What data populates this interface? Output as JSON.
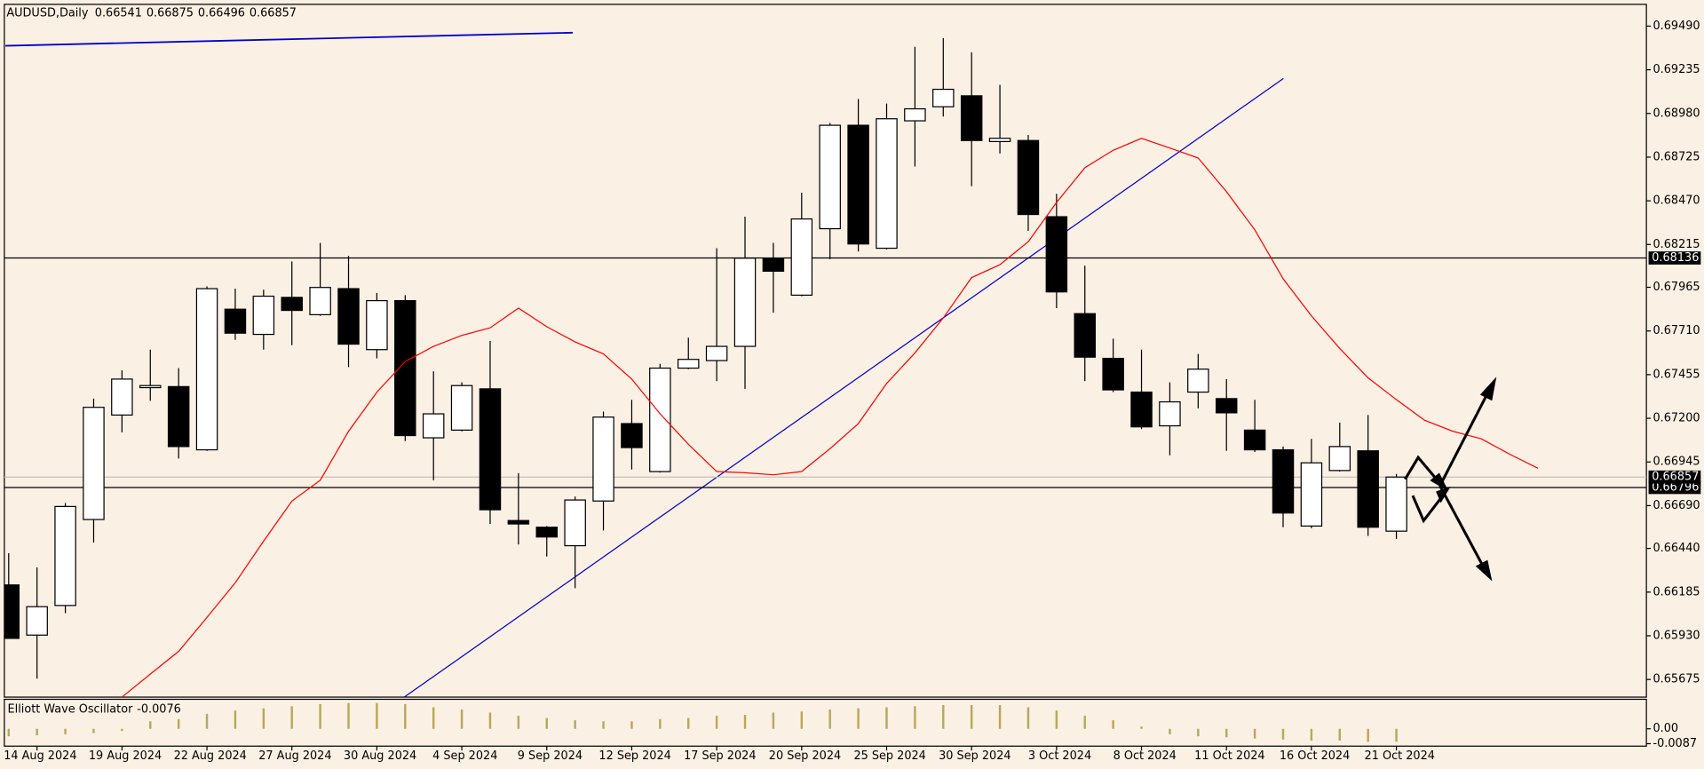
{
  "chart_data": [
    {
      "type": "candlestick",
      "title": "AUDUSD,Daily",
      "categories": [
        null,
        "14 Aug 2024",
        null,
        null,
        "19 Aug 2024",
        null,
        null,
        "22 Aug 2024",
        null,
        null,
        "27 Aug 2024",
        null,
        null,
        "30 Aug 2024",
        null,
        null,
        "4 Sep 2024",
        null,
        null,
        "9 Sep 2024",
        null,
        null,
        "12 Sep 2024",
        null,
        null,
        "17 Sep 2024",
        null,
        null,
        "20 Sep 2024",
        null,
        null,
        "25 Sep 2024",
        null,
        null,
        "30 Sep 2024",
        null,
        null,
        "3 Oct 2024",
        null,
        null,
        "8 Oct 2024",
        null,
        null,
        "11 Oct 2024",
        null,
        null,
        "16 Oct 2024",
        null,
        null,
        "21 Oct 2024",
        null,
        null,
        null,
        null,
        null
      ],
      "open": [
        0.66227,
        0.65934,
        0.66107,
        0.66609,
        0.67219,
        0.67379,
        0.67385,
        0.67016,
        0.67837,
        0.6769,
        0.67906,
        0.67805,
        0.67957,
        0.67601,
        0.67887,
        0.67086,
        0.67131,
        0.67372,
        0.66603,
        0.66564,
        0.66456,
        0.66717,
        0.67169,
        0.66889,
        0.67493,
        0.67537,
        0.6762,
        0.68135,
        0.67919,
        0.68307,
        0.68911,
        0.68193,
        0.68937,
        0.69019,
        0.69083,
        0.68816,
        0.68822,
        0.68377,
        0.67811,
        0.6755,
        0.67353,
        0.67156,
        0.67353,
        0.67315,
        0.67131,
        0.67016,
        0.66571,
        0.66895,
        0.6701,
        0.66541,
        null,
        null,
        null,
        null,
        null
      ],
      "high": [
        0.66412,
        0.66329,
        0.66705,
        0.67315,
        0.6748,
        0.67601,
        0.67493,
        0.6797,
        0.67957,
        0.67951,
        0.68116,
        0.68224,
        0.68148,
        0.67932,
        0.67919,
        0.67474,
        0.6741,
        0.67652,
        0.6688,
        0.66571,
        0.66743,
        0.67239,
        0.67308,
        0.67518,
        0.67671,
        0.68193,
        0.68377,
        0.68224,
        0.68517,
        0.68924,
        0.69064,
        0.69038,
        0.69369,
        0.6942,
        0.69337,
        0.69147,
        0.68854,
        0.68511,
        0.68091,
        0.67665,
        0.67601,
        0.6741,
        0.67576,
        0.67429,
        0.67308,
        0.67035,
        0.6708,
        0.67175,
        0.67219,
        0.66875,
        null,
        null,
        null,
        null,
        null
      ],
      "low": [
        0.65915,
        0.6568,
        0.66062,
        0.66475,
        0.67118,
        0.67302,
        0.66965,
        0.6701,
        0.67658,
        0.67601,
        0.67627,
        0.67798,
        0.67499,
        0.6755,
        0.67067,
        0.66838,
        0.67124,
        0.66583,
        0.66463,
        0.66393,
        0.66208,
        0.66545,
        0.66901,
        0.66883,
        0.67487,
        0.67417,
        0.67372,
        0.67817,
        0.67913,
        0.68129,
        0.68174,
        0.68186,
        0.6867,
        0.68962,
        0.68555,
        0.68746,
        0.68294,
        0.67843,
        0.67417,
        0.67353,
        0.67137,
        0.66984,
        0.67258,
        0.6701,
        0.67003,
        0.66564,
        0.66558,
        0.66889,
        0.66513,
        0.66496,
        null,
        null,
        null,
        null,
        null
      ],
      "close": [
        0.65915,
        0.661,
        0.66685,
        0.67264,
        0.67429,
        0.67391,
        0.67035,
        0.67957,
        0.67697,
        0.67913,
        0.6783,
        0.67964,
        0.67633,
        0.67887,
        0.67099,
        0.67226,
        0.67391,
        0.66666,
        0.66583,
        0.66507,
        0.66723,
        0.67207,
        0.67029,
        0.67493,
        0.67544,
        0.6762,
        0.68135,
        0.68059,
        0.68364,
        0.68911,
        0.68218,
        0.68949,
        0.69007,
        0.69121,
        0.68822,
        0.68835,
        0.6839,
        0.67938,
        0.67557,
        0.67366,
        0.6715,
        0.67296,
        0.67487,
        0.67232,
        0.67016,
        0.66647,
        0.6694,
        0.67035,
        0.66564,
        0.66857,
        null,
        null,
        null,
        null,
        null
      ],
      "up_color": "#ffffff",
      "down_color": "#000000",
      "ma": {
        "color": "#ff0000",
        "values": [
          null,
          null,
          null,
          null,
          0.65572,
          0.65706,
          0.65839,
          0.66037,
          0.6624,
          0.66482,
          0.66717,
          0.66838,
          0.67124,
          0.67353,
          0.67531,
          0.6762,
          0.67684,
          0.67728,
          0.67843,
          0.67735,
          0.67646,
          0.67576,
          0.67429,
          0.67226,
          0.67048,
          0.66889,
          0.66882,
          0.6687,
          0.66889,
          0.67022,
          0.67169,
          0.67404,
          0.67582,
          0.67786,
          0.68021,
          0.68097,
          0.68231,
          0.6846,
          0.68663,
          0.68765,
          0.68835,
          0.68778,
          0.6872,
          0.68523,
          0.68301,
          0.68015,
          0.67798,
          0.67608,
          0.67436,
          0.67309,
          0.67188,
          0.67124,
          0.6708,
          0.6699,
          0.66908
        ]
      },
      "price_lines": [
        0.68136,
        0.66796
      ],
      "ylim": [
        0.65572,
        0.69617
      ],
      "yticks": [
        {
          "value": 0.6949,
          "label": "0.69490"
        },
        {
          "value": 0.69235,
          "label": "0.69235"
        },
        {
          "value": 0.6898,
          "label": "0.68980"
        },
        {
          "value": 0.68725,
          "label": "0.68725"
        },
        {
          "value": 0.6847,
          "label": "0.68470"
        },
        {
          "value": 0.68215,
          "label": "0.68215"
        },
        {
          "value": 0.67965,
          "label": "0.67965"
        },
        {
          "value": 0.6771,
          "label": "0.67710"
        },
        {
          "value": 0.67455,
          "label": "0.67455"
        },
        {
          "value": 0.672,
          "label": "0.67200"
        },
        {
          "value": 0.66945,
          "label": "0.66945"
        },
        {
          "value": 0.6669,
          "label": "0.66690"
        },
        {
          "value": 0.6644,
          "label": "0.66440"
        },
        {
          "value": 0.66185,
          "label": "0.66185"
        },
        {
          "value": 0.6593,
          "label": "0.65930"
        },
        {
          "value": 0.65675,
          "label": "0.65675"
        }
      ]
    },
    {
      "type": "bar",
      "title": "Elliott Wave Oscillator",
      "color": "#b8a85a",
      "values": [
        -0.0044,
        -0.0038,
        -0.0032,
        -0.0025,
        -0.0013,
        0.0044,
        0.0057,
        0.0088,
        0.0107,
        0.012,
        0.0132,
        0.0145,
        0.0151,
        0.0151,
        0.0145,
        0.0126,
        0.0113,
        0.0095,
        0.0076,
        0.0063,
        0.005,
        0.0044,
        0.0044,
        0.0057,
        0.0063,
        0.0076,
        0.0082,
        0.0095,
        0.0101,
        0.0113,
        0.012,
        0.0126,
        0.0132,
        0.0139,
        0.0139,
        0.0139,
        0.0126,
        0.0107,
        0.0076,
        0.005,
        0.0013,
        -0.0032,
        -0.0044,
        -0.005,
        -0.0057,
        -0.0063,
        -0.0069,
        -0.0069,
        -0.0076,
        -0.0076,
        null,
        null,
        null,
        null,
        null
      ],
      "ylim": [
        -0.0095,
        0.016
      ],
      "yticks": [
        {
          "value": 0,
          "label": "0.00"
        },
        -0.0087
      ]
    }
  ]
}
